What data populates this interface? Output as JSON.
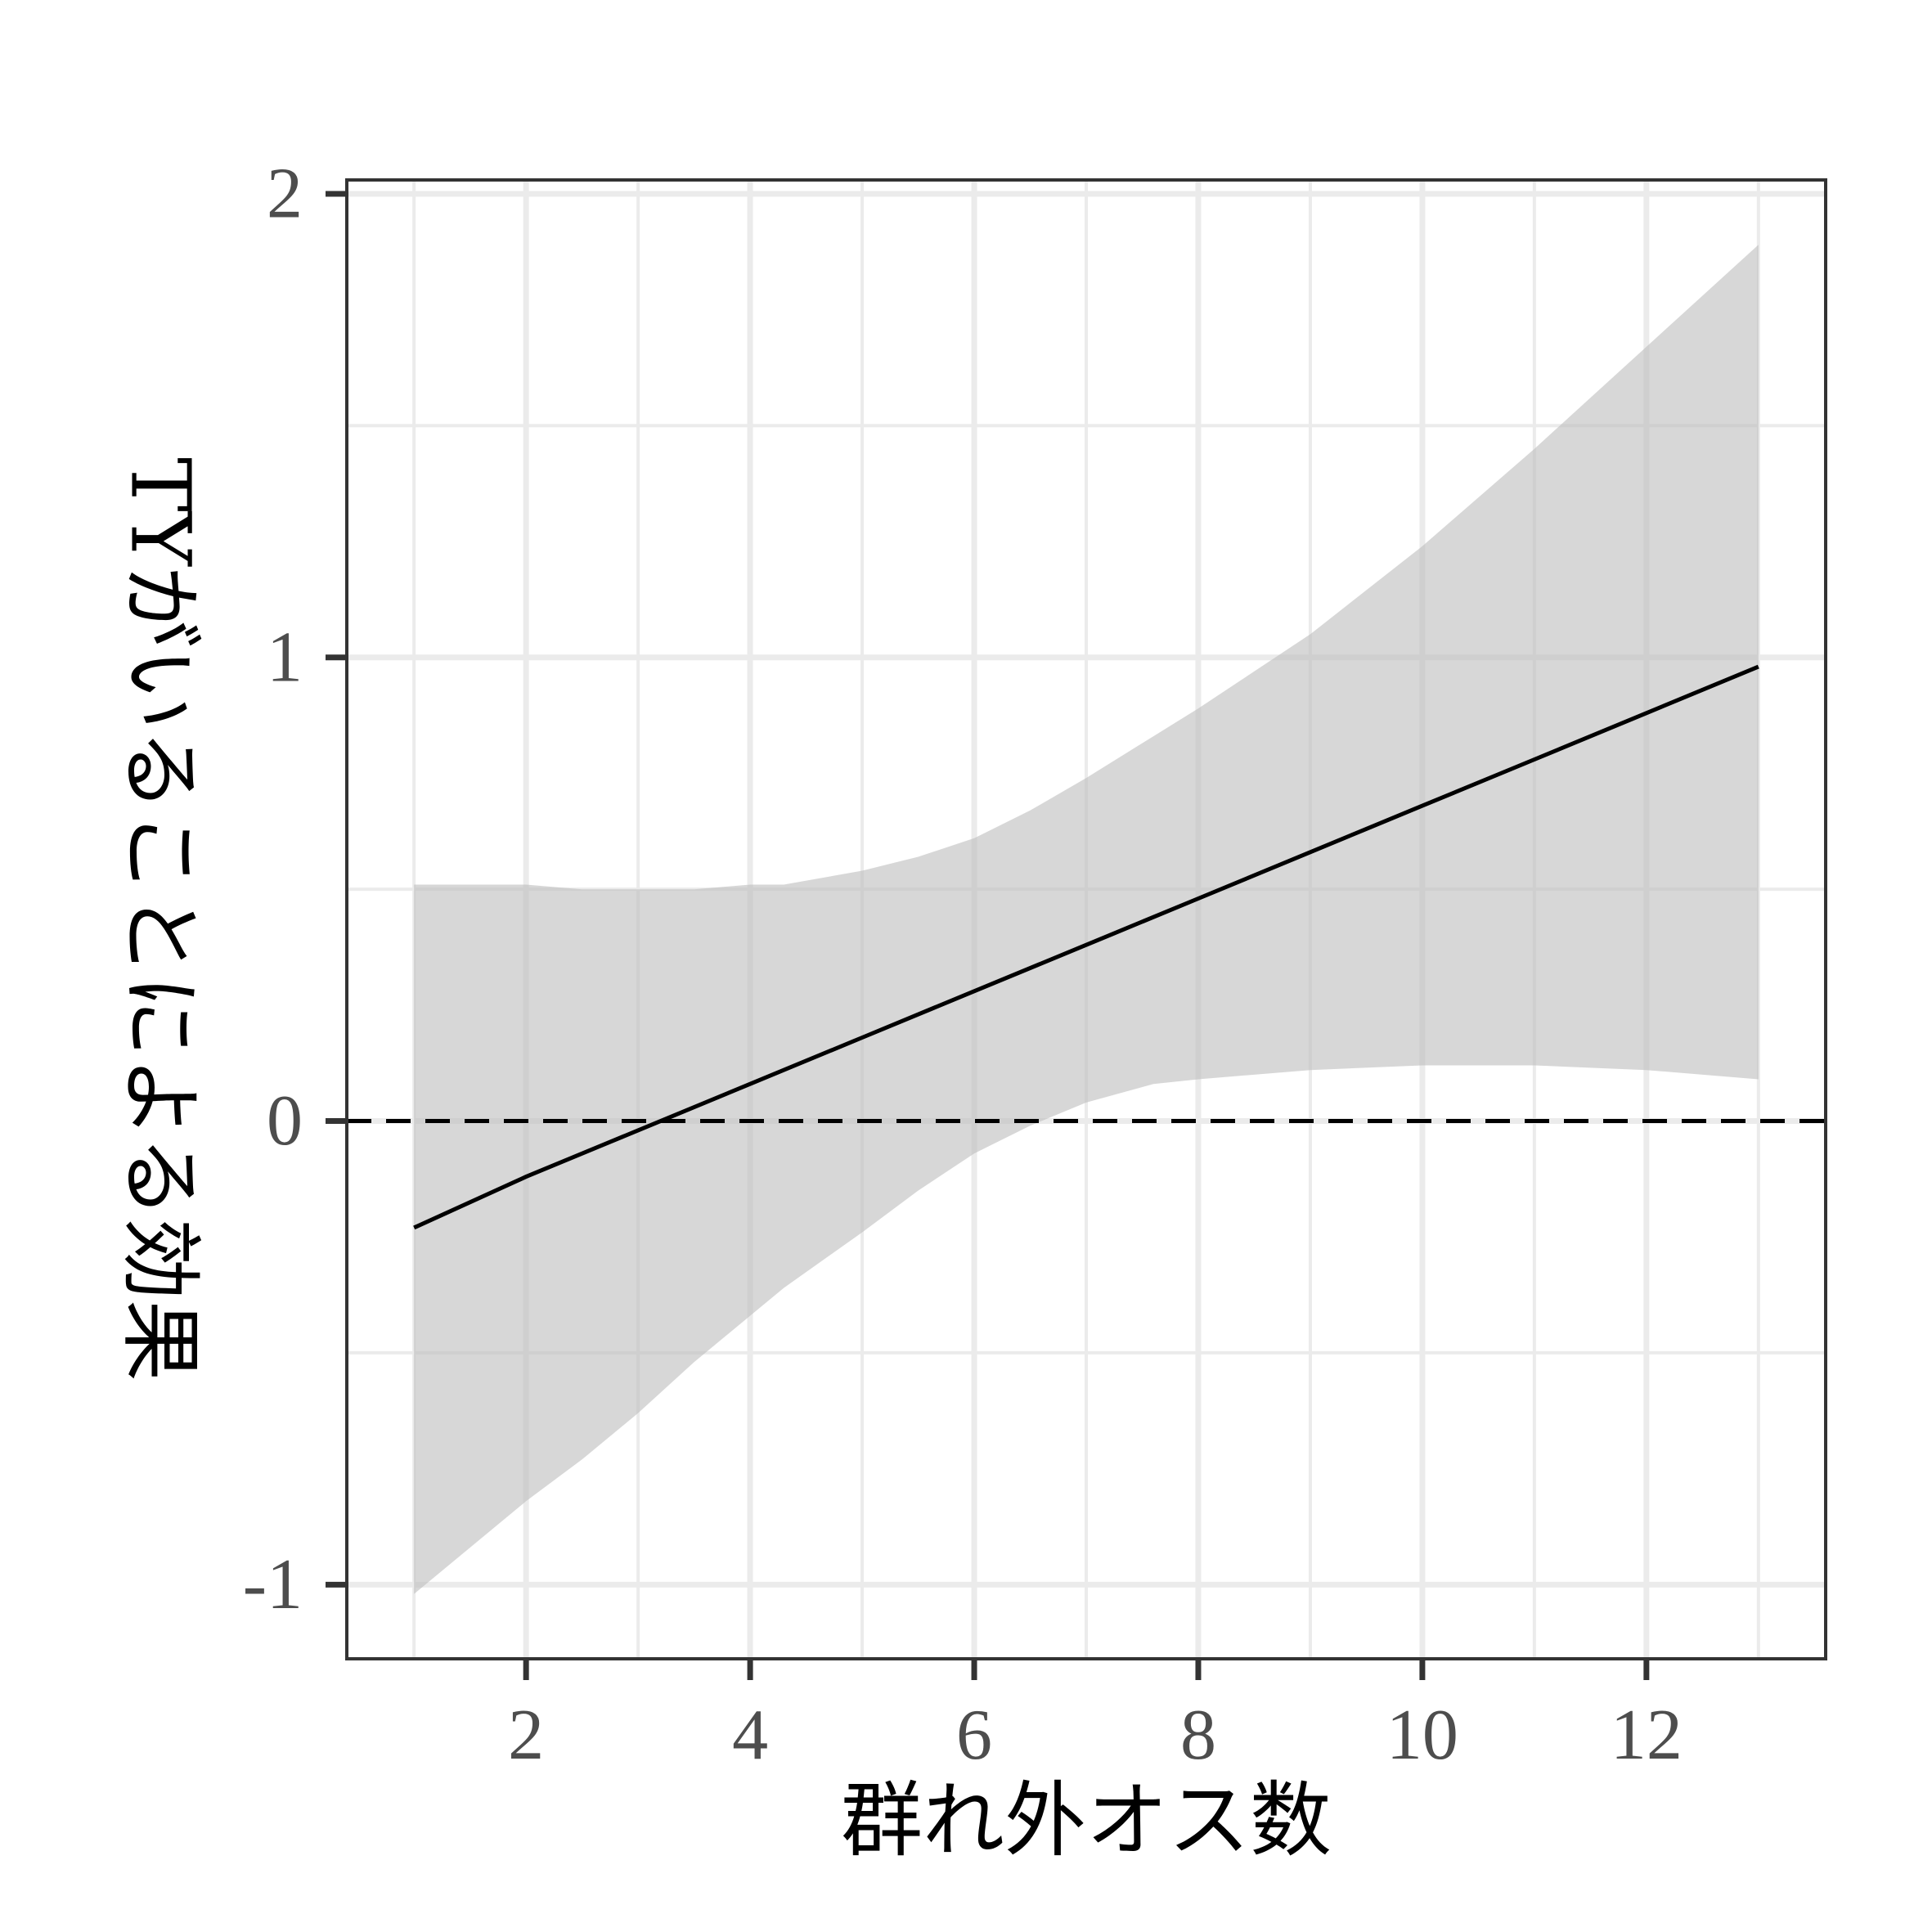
{
  "chart_data": {
    "type": "line",
    "title": "",
    "xlabel": "群れ外オス数",
    "ylabel": "TYがいることによる効果",
    "xlim": [
      0.4,
      13.6
    ],
    "ylim": [
      -1.16,
      2.03
    ],
    "x_ticks": [
      {
        "value": 2,
        "label": "2"
      },
      {
        "value": 4,
        "label": "4"
      },
      {
        "value": 6,
        "label": "6"
      },
      {
        "value": 8,
        "label": "8"
      },
      {
        "value": 10,
        "label": "10"
      },
      {
        "value": 12,
        "label": "12"
      }
    ],
    "y_ticks": [
      {
        "value": -1,
        "label": "-1"
      },
      {
        "value": 0,
        "label": "0"
      },
      {
        "value": 1,
        "label": "1"
      },
      {
        "value": 2,
        "label": "2"
      }
    ],
    "x_minor_grid": [
      1,
      3,
      5,
      7,
      9,
      11,
      13
    ],
    "y_minor_grid": [
      -0.5,
      0.5,
      1.5
    ],
    "grid": true,
    "reference_line": {
      "y": 0,
      "style": "dashed",
      "color": "#000000"
    },
    "series": [
      {
        "x": [
          1,
          2,
          3,
          4,
          5,
          6,
          7,
          8,
          9,
          10,
          11,
          12,
          13
        ],
        "y": [
          -0.23,
          -0.12,
          -0.02,
          0.08,
          0.18,
          0.28,
          0.38,
          0.48,
          0.58,
          0.68,
          0.78,
          0.88,
          0.98
        ],
        "color": "#000000"
      }
    ],
    "ribbon": {
      "x": [
        1,
        1.5,
        2,
        2.5,
        3,
        3.5,
        4,
        4.3,
        5,
        5.5,
        6,
        6.5,
        7,
        7.6,
        8,
        9,
        10,
        11,
        12,
        13
      ],
      "lower": [
        -1.02,
        -0.92,
        -0.82,
        -0.73,
        -0.63,
        -0.52,
        -0.42,
        -0.36,
        -0.24,
        -0.15,
        -0.07,
        -0.01,
        0.04,
        0.08,
        0.09,
        0.11,
        0.12,
        0.12,
        0.11,
        0.09
      ],
      "upper": [
        0.51,
        0.51,
        0.51,
        0.5,
        0.5,
        0.5,
        0.51,
        0.51,
        0.54,
        0.57,
        0.61,
        0.67,
        0.74,
        0.83,
        0.89,
        1.05,
        1.24,
        1.45,
        1.67,
        1.89
      ],
      "color": "#bfbfbf",
      "opacity": 0.62
    }
  }
}
